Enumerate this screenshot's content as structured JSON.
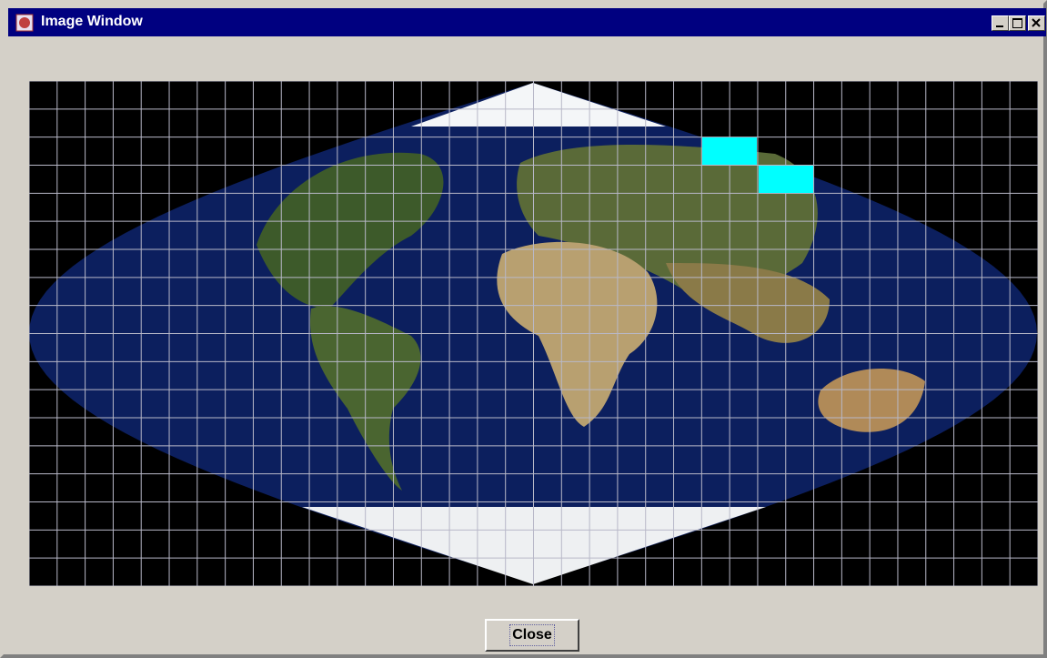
{
  "window": {
    "title": "Image Window"
  },
  "buttons": {
    "close": "Close"
  }
}
